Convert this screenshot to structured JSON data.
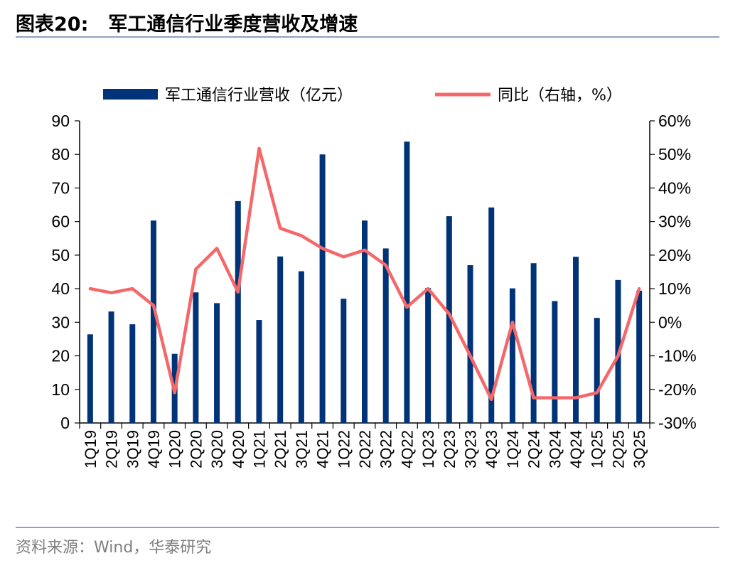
{
  "header": {
    "figure_no": "图表20:",
    "title": "军工通信行业季度营收及增速"
  },
  "footer": {
    "source": "资料来源：Wind，华泰研究"
  },
  "colors": {
    "bar": "#003377",
    "line": "#f5686a",
    "rule": "#8ea2bd"
  },
  "chart_data": {
    "type": "bar+line",
    "categories": [
      "1Q19",
      "2Q19",
      "3Q19",
      "4Q19",
      "1Q20",
      "2Q20",
      "3Q20",
      "4Q20",
      "1Q21",
      "2Q21",
      "3Q21",
      "4Q21",
      "1Q22",
      "2Q22",
      "3Q22",
      "4Q22",
      "1Q23",
      "2Q23",
      "3Q23",
      "4Q23",
      "1Q24",
      "2Q24",
      "3Q24",
      "4Q24",
      "1Q25",
      "2Q25",
      "3Q25"
    ],
    "series": [
      {
        "name": "军工通信行业营收（亿元）",
        "type": "bar",
        "axis": "left",
        "values": [
          26.4,
          33.2,
          29.4,
          60.3,
          20.6,
          38.9,
          35.7,
          66.1,
          30.7,
          49.6,
          45.2,
          80.0,
          37.0,
          60.3,
          52.0,
          83.8,
          40.2,
          61.6,
          47.0,
          64.2,
          40.1,
          47.6,
          36.3,
          49.5,
          31.3,
          42.6,
          39.4
        ]
      },
      {
        "name": "同比（右轴，%）",
        "type": "line",
        "axis": "right",
        "values": [
          10.0,
          8.8,
          10.0,
          5.0,
          -21.0,
          15.8,
          22.0,
          9.0,
          51.8,
          28.0,
          25.8,
          22.0,
          19.5,
          21.5,
          17.0,
          4.5,
          10.0,
          2.5,
          -10.0,
          -23.0,
          0.0,
          -22.5,
          -22.5,
          -22.5,
          -21.0,
          -10.0,
          10.0
        ]
      }
    ],
    "y_left": {
      "ylim": [
        0,
        90
      ],
      "ticks": [
        "0",
        "10",
        "20",
        "30",
        "40",
        "50",
        "60",
        "70",
        "80",
        "90"
      ]
    },
    "y_right": {
      "ylim": [
        -30,
        60
      ],
      "ticks": [
        "-30%",
        "-20%",
        "-10%",
        "0%",
        "10%",
        "20%",
        "30%",
        "40%",
        "50%",
        "60%"
      ]
    },
    "legend": "top-center",
    "grid": false
  }
}
